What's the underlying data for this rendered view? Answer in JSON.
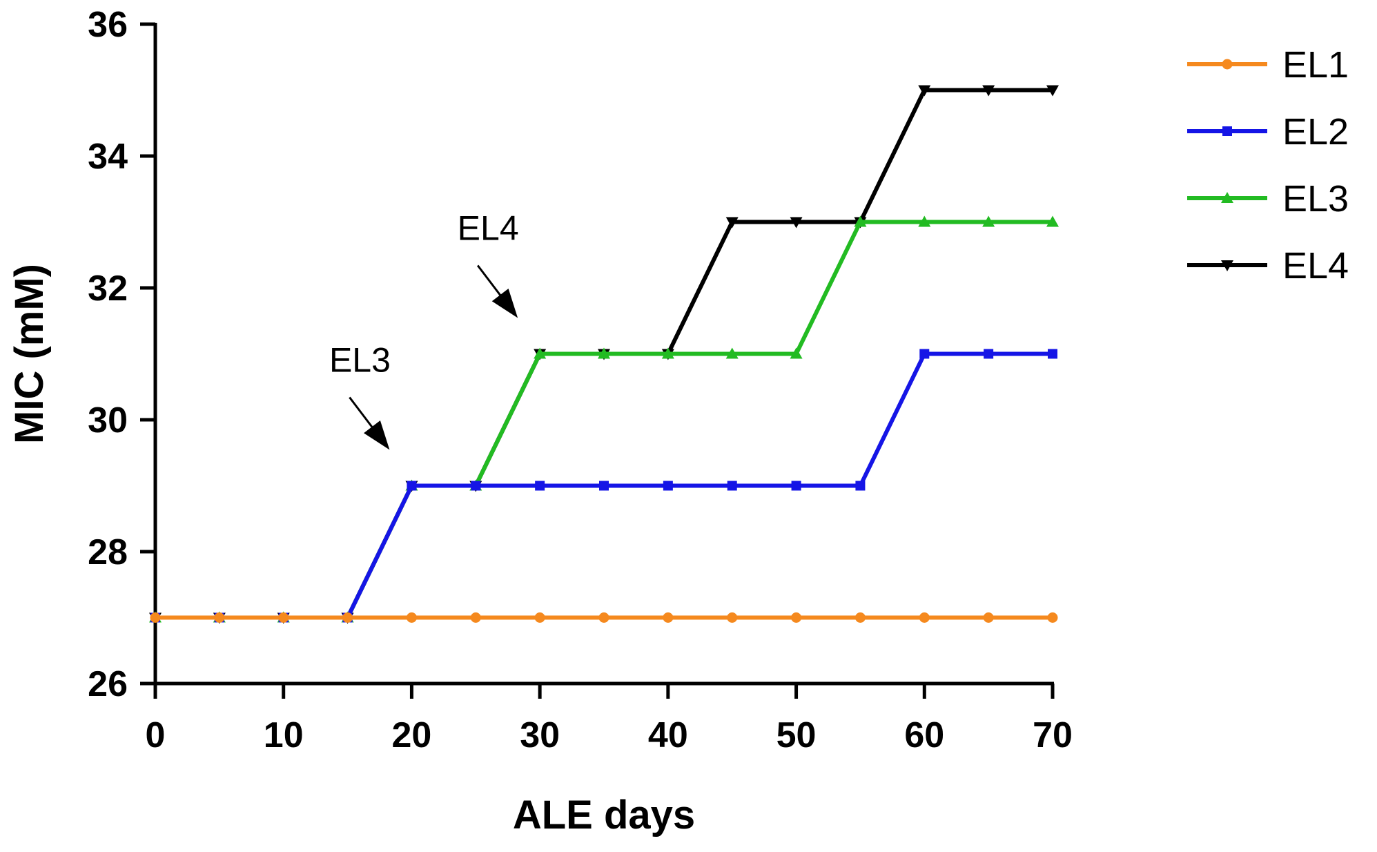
{
  "chart_data": {
    "type": "line",
    "title": "",
    "xlabel": "ALE days",
    "ylabel": "MIC (mM)",
    "xlim": [
      0,
      70
    ],
    "ylim": [
      26,
      36
    ],
    "xticks": [
      0,
      10,
      20,
      30,
      40,
      50,
      60,
      70
    ],
    "yticks": [
      26,
      28,
      30,
      32,
      34,
      36
    ],
    "grid": false,
    "legend_position": "right",
    "series": [
      {
        "name": "EL4",
        "color": "#000000",
        "marker": "triangle-down",
        "x": [
          0,
          5,
          10,
          15,
          20,
          25,
          30,
          35,
          40,
          45,
          50,
          55,
          60,
          65,
          70
        ],
        "y": [
          27,
          27,
          27,
          27,
          29,
          29,
          31,
          31,
          31,
          33,
          33,
          33,
          35,
          35,
          35
        ]
      },
      {
        "name": "EL3",
        "color": "#22bb22",
        "marker": "triangle-up",
        "x": [
          0,
          5,
          10,
          15,
          20,
          25,
          30,
          35,
          40,
          45,
          50,
          55,
          60,
          65,
          70
        ],
        "y": [
          27,
          27,
          27,
          27,
          29,
          29,
          31,
          31,
          31,
          31,
          31,
          33,
          33,
          33,
          33
        ]
      },
      {
        "name": "EL2",
        "color": "#1515e6",
        "marker": "square",
        "x": [
          0,
          5,
          10,
          15,
          20,
          25,
          30,
          35,
          40,
          45,
          50,
          55,
          60,
          65,
          70
        ],
        "y": [
          27,
          27,
          27,
          27,
          29,
          29,
          29,
          29,
          29,
          29,
          29,
          29,
          31,
          31,
          31
        ]
      },
      {
        "name": "EL1",
        "color": "#f5891e",
        "marker": "circle",
        "x": [
          0,
          5,
          10,
          15,
          20,
          25,
          30,
          35,
          40,
          45,
          50,
          55,
          60,
          65,
          70
        ],
        "y": [
          27,
          27,
          27,
          27,
          27,
          27,
          27,
          27,
          27,
          27,
          27,
          27,
          27,
          27,
          27
        ]
      }
    ],
    "legend": [
      "EL1",
      "EL2",
      "EL3",
      "EL4"
    ],
    "annotations": [
      {
        "text": "EL3",
        "x": 20,
        "y": 29
      },
      {
        "text": "EL4",
        "x": 30,
        "y": 31
      }
    ]
  }
}
